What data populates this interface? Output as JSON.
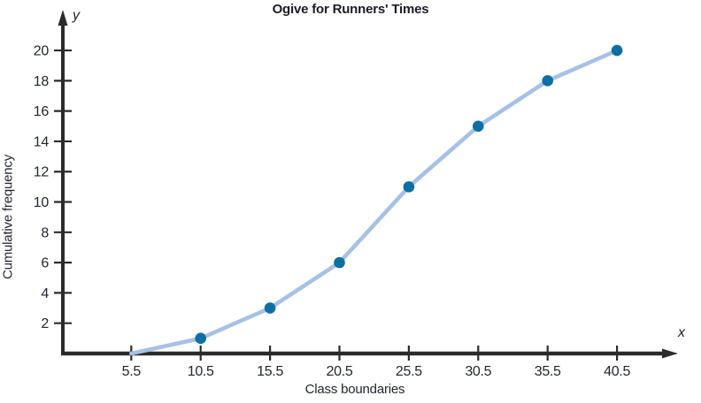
{
  "chart_data": {
    "type": "line",
    "title": "Ogive for Runners' Times",
    "xlabel": "Class boundaries",
    "ylabel": "Cumulative frequency",
    "axis_letters": {
      "x": "x",
      "y": "y"
    },
    "x": [
      5.5,
      10.5,
      15.5,
      20.5,
      25.5,
      30.5,
      35.5,
      40.5
    ],
    "y": [
      0,
      1,
      3,
      6,
      11,
      15,
      18,
      20
    ],
    "marker_points": [
      [
        10.5,
        1
      ],
      [
        15.5,
        3
      ],
      [
        20.5,
        6
      ],
      [
        25.5,
        11
      ],
      [
        30.5,
        15
      ],
      [
        35.5,
        18
      ],
      [
        40.5,
        20
      ]
    ],
    "x_ticks": [
      "5.5",
      "10.5",
      "15.5",
      "20.5",
      "25.5",
      "30.5",
      "35.5",
      "40.5"
    ],
    "y_ticks": [
      "2",
      "4",
      "6",
      "8",
      "10",
      "12",
      "14",
      "16",
      "18",
      "20"
    ],
    "xlim": [
      0.5,
      44.5
    ],
    "ylim": [
      0,
      21.5
    ],
    "grid": false,
    "legend": "none",
    "colors": {
      "line": "#a6c1e6",
      "marker": "#0e6fa4",
      "axis": "#2b2b2b",
      "tick_text": "#23262e",
      "title_text": "#1b1b29"
    }
  }
}
